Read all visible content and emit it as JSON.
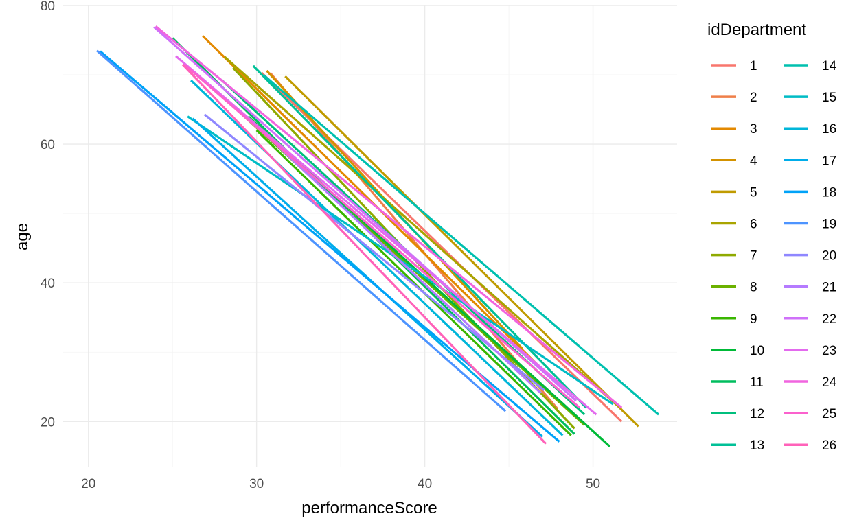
{
  "chart_data": {
    "type": "line",
    "xlabel": "performanceScore",
    "ylabel": "age",
    "xlim": [
      18.5,
      55
    ],
    "ylim": [
      13.5,
      80
    ],
    "x_ticks": [
      20,
      30,
      40,
      50
    ],
    "y_ticks": [
      20,
      40,
      60,
      80
    ],
    "grid": true,
    "legend": {
      "title": "idDepartment",
      "position": "right",
      "columns": 2
    },
    "series": [
      {
        "name": "1",
        "color": "#F8766D",
        "x": [
          30.3,
          51.7
        ],
        "y": [
          70.3,
          20.0
        ]
      },
      {
        "name": "2",
        "color": "#EF7F49",
        "x": [
          30.8,
          47.9
        ],
        "y": [
          70.3,
          21.8
        ]
      },
      {
        "name": "3",
        "color": "#E38900",
        "x": [
          26.8,
          47.2
        ],
        "y": [
          75.6,
          27.0
        ]
      },
      {
        "name": "4",
        "color": "#D39200",
        "x": [
          30.6,
          45.8
        ],
        "y": [
          70.6,
          30.5
        ]
      },
      {
        "name": "5",
        "color": "#C09B00",
        "x": [
          31.7,
          52.7
        ],
        "y": [
          69.8,
          19.3
        ]
      },
      {
        "name": "6",
        "color": "#A9A400",
        "x": [
          28.1,
          51.5
        ],
        "y": [
          72.6,
          22.2
        ]
      },
      {
        "name": "7",
        "color": "#8FAA00",
        "x": [
          28.6,
          48.9
        ],
        "y": [
          71.0,
          19.0
        ]
      },
      {
        "name": "8",
        "color": "#6BB100",
        "x": [
          27.9,
          49.5
        ],
        "y": [
          67.0,
          19.5
        ]
      },
      {
        "name": "9",
        "color": "#3AB600",
        "x": [
          30.0,
          48.7
        ],
        "y": [
          62.0,
          18.0
        ]
      },
      {
        "name": "10",
        "color": "#00BA38",
        "x": [
          29.5,
          51.0
        ],
        "y": [
          64.0,
          16.4
        ]
      },
      {
        "name": "11",
        "color": "#00BD5F",
        "x": [
          25.0,
          48.9
        ],
        "y": [
          75.3,
          18.2
        ]
      },
      {
        "name": "12",
        "color": "#00BF7D",
        "x": [
          27.9,
          49.5
        ],
        "y": [
          69.3,
          21.0
        ]
      },
      {
        "name": "13",
        "color": "#00C097",
        "x": [
          29.8,
          49.6
        ],
        "y": [
          71.3,
          22.0
        ]
      },
      {
        "name": "14",
        "color": "#00C0AF",
        "x": [
          30.4,
          53.9
        ],
        "y": [
          70.0,
          21.0
        ]
      },
      {
        "name": "15",
        "color": "#00BCC5",
        "x": [
          25.9,
          51.2
        ],
        "y": [
          64.0,
          22.5
        ]
      },
      {
        "name": "16",
        "color": "#00B6D9",
        "x": [
          26.1,
          48.2
        ],
        "y": [
          69.2,
          18.0
        ]
      },
      {
        "name": "17",
        "color": "#00ADEA",
        "x": [
          26.2,
          47.0
        ],
        "y": [
          63.7,
          17.8
        ]
      },
      {
        "name": "18",
        "color": "#00A2F8",
        "x": [
          20.7,
          48.0
        ],
        "y": [
          73.4,
          17.1
        ]
      },
      {
        "name": "19",
        "color": "#4D94FF",
        "x": [
          20.5,
          44.8
        ],
        "y": [
          73.5,
          21.5
        ]
      },
      {
        "name": "20",
        "color": "#8F87FF",
        "x": [
          26.9,
          47.1
        ],
        "y": [
          64.3,
          24.5
        ]
      },
      {
        "name": "21",
        "color": "#B57BFF",
        "x": [
          29.3,
          46.9
        ],
        "y": [
          64.2,
          24.1
        ]
      },
      {
        "name": "22",
        "color": "#CF71F9",
        "x": [
          23.9,
          49.0
        ],
        "y": [
          76.9,
          23.0
        ]
      },
      {
        "name": "23",
        "color": "#E36AEE",
        "x": [
          25.2,
          50.2
        ],
        "y": [
          72.7,
          21.0
        ]
      },
      {
        "name": "24",
        "color": "#F165DF",
        "x": [
          24.0,
          51.7
        ],
        "y": [
          77.0,
          22.0
        ]
      },
      {
        "name": "25",
        "color": "#FB61CD",
        "x": [
          25.7,
          49.2
        ],
        "y": [
          71.5,
          22.0
        ]
      },
      {
        "name": "26",
        "color": "#FF62B9",
        "x": [
          25.6,
          47.2
        ],
        "y": [
          71.5,
          16.8
        ]
      }
    ]
  }
}
